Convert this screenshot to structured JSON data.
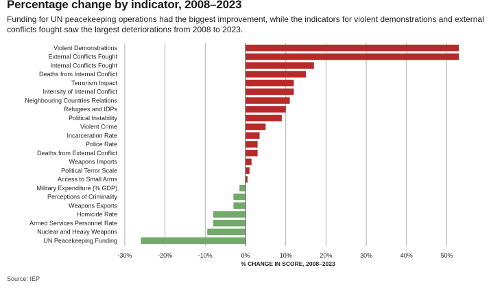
{
  "title": "Percentage change by indicator, 2008–2023",
  "subtitle": "Funding for UN peacekeeping operations had the biggest improvement, while the indicators for violent demonstrations and external conflicts fought saw the largest deteriorations from 2008 to 2023.",
  "source": "Source: IEP",
  "colors": {
    "positive": "#b82a2a",
    "negative": "#72aa6a",
    "gridline": "#b0b0b0",
    "zero_line": "#444444"
  },
  "chart_data": {
    "type": "bar",
    "orientation": "horizontal",
    "categories": [
      "Violent Demonstrations",
      "External Conflicts Fought",
      "Internal Conflicts Fought",
      "Deaths from Internal Conflict",
      "Terrorism Impact",
      "Intensity of Internal Conflict",
      "Neighbouring Countries Relations",
      "Refugees and IDPs",
      "Political Instability",
      "Violent Crime",
      "Incarceration Rate",
      "Police Rate",
      "Deaths from External Conflict",
      "Weapons Imports",
      "Political Terror Scale",
      "Access to Small Arms",
      "Military Expenditure (% GDP)",
      "Perceptions of Criminality",
      "Weapons Exports",
      "Homicide Rate",
      "Armed Services Personnel Rate",
      "Nuclear and Heavy Weapons",
      "UN Peacekeeping Funding"
    ],
    "values": [
      53,
      53,
      17,
      15,
      12,
      12,
      11,
      10,
      9,
      5,
      3.5,
      3,
      3,
      1.5,
      1,
      0.5,
      -1.5,
      -3,
      -3,
      -8,
      -8,
      -9.5,
      -26
    ],
    "xlabel": "% CHANGE IN SCORE, 2008–2023",
    "xlim": [
      -30,
      53
    ],
    "ticks": [
      -30,
      -20,
      -10,
      0,
      10,
      20,
      30,
      40,
      50
    ],
    "tick_labels": [
      "-30%",
      "-20%",
      "-10%",
      "0%",
      "10%",
      "20%",
      "30%",
      "40%",
      "50%"
    ],
    "grid": true
  }
}
